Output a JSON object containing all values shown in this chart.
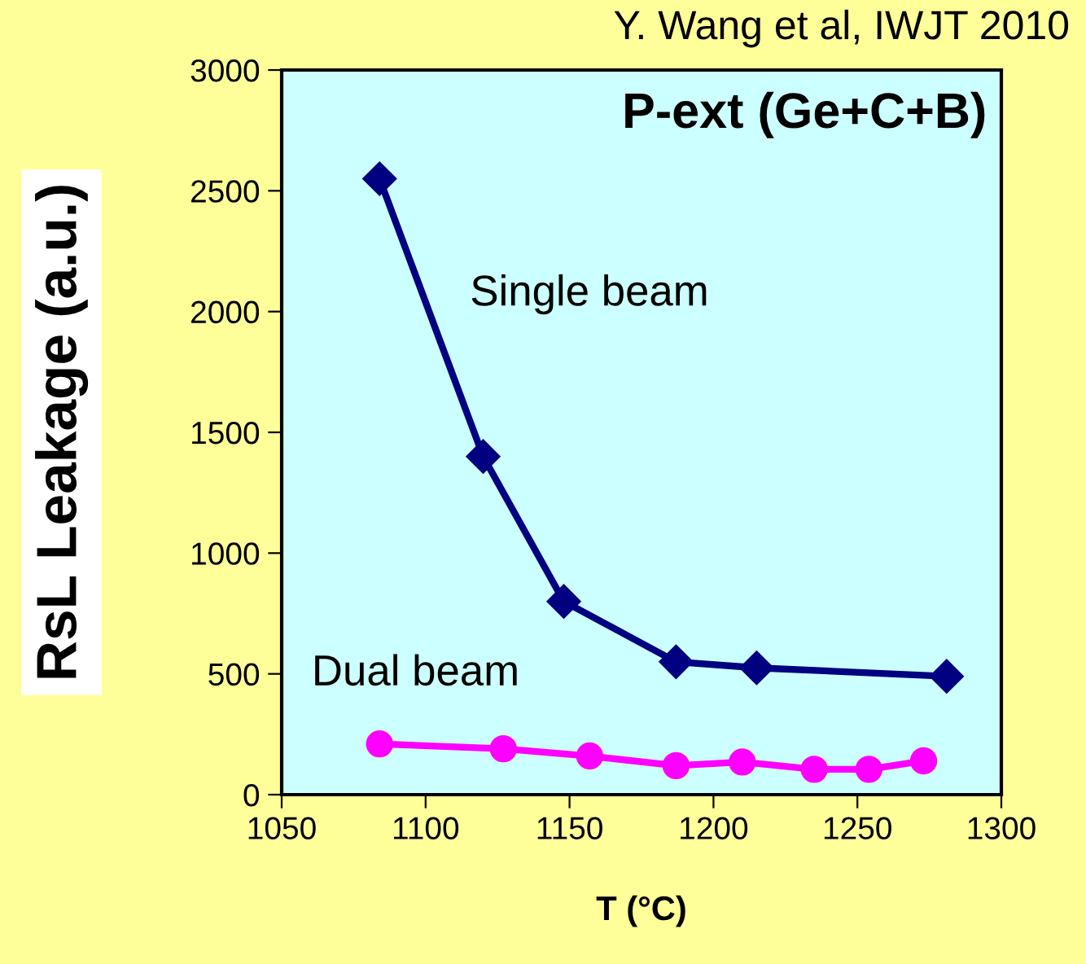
{
  "chart_data": {
    "type": "line",
    "title": "P-ext (Ge+C+B)",
    "xlabel": "T (°C)",
    "ylabel": "RsL Leakage (a.u.)",
    "annotations": [
      "Y. Wang et al, IWJT 2010"
    ],
    "xlim": [
      1050,
      1300
    ],
    "xticks": [
      1050,
      1100,
      1150,
      1200,
      1250,
      1300
    ],
    "ylim": [
      0,
      3000
    ],
    "yticks": [
      0,
      500,
      1000,
      1500,
      2000,
      2500,
      3000
    ],
    "grid": false,
    "legend": false,
    "series": [
      {
        "name": "Single beam",
        "color": "#000080",
        "marker": "diamond",
        "x": [
          1084,
          1120,
          1148,
          1187,
          1215,
          1281
        ],
        "values": [
          2550,
          1400,
          800,
          550,
          525,
          490
        ]
      },
      {
        "name": "Dual beam",
        "color": "#ff00ff",
        "marker": "circle",
        "x": [
          1084,
          1127,
          1157,
          1187,
          1210,
          1235,
          1254,
          1273
        ],
        "values": [
          210,
          190,
          160,
          120,
          135,
          105,
          105,
          140
        ]
      }
    ]
  }
}
